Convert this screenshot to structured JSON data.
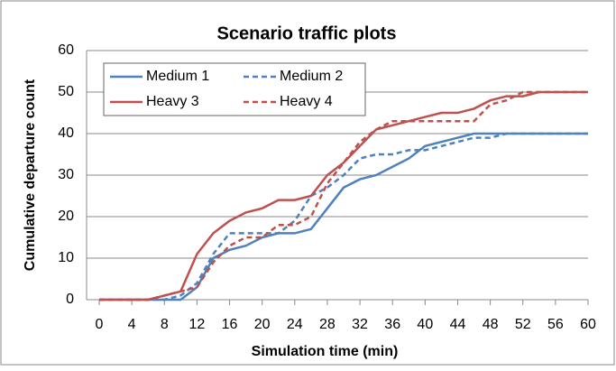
{
  "chart_data": {
    "type": "line",
    "title": "Scenario traffic plots",
    "x_label": "Simulation time (min)",
    "y_label": "Cumulative departure count",
    "x": [
      0,
      2,
      4,
      6,
      8,
      10,
      12,
      14,
      16,
      18,
      20,
      22,
      24,
      26,
      28,
      30,
      32,
      34,
      36,
      38,
      40,
      42,
      44,
      46,
      48,
      50,
      52,
      54,
      56,
      58,
      60
    ],
    "series": [
      {
        "name": "Medium 1",
        "color": "#4f81bd",
        "dashed": false,
        "values": [
          0,
          0,
          0,
          0,
          0,
          0,
          3,
          10,
          12,
          13,
          15,
          16,
          16,
          17,
          22,
          27,
          29,
          30,
          32,
          34,
          37,
          38,
          39,
          40,
          40,
          40,
          40,
          40,
          40,
          40,
          40
        ]
      },
      {
        "name": "Medium 2",
        "color": "#4f81bd",
        "dashed": true,
        "values": [
          0,
          0,
          0,
          0,
          0,
          1,
          4,
          11,
          16,
          16,
          16,
          16,
          19,
          25,
          27,
          30,
          34,
          35,
          35,
          36,
          36,
          37,
          38,
          39,
          39,
          40,
          40,
          40,
          40,
          40,
          40
        ]
      },
      {
        "name": "Heavy 3",
        "color": "#c0504d",
        "dashed": false,
        "values": [
          0,
          0,
          0,
          0,
          1,
          2,
          11,
          16,
          19,
          21,
          22,
          24,
          24,
          25,
          30,
          33,
          37,
          41,
          42,
          43,
          44,
          45,
          45,
          46,
          48,
          49,
          49,
          50,
          50,
          50,
          50
        ]
      },
      {
        "name": "Heavy 4",
        "color": "#c0504d",
        "dashed": true,
        "values": [
          0,
          0,
          0,
          0,
          1,
          2,
          3,
          9,
          13,
          15,
          15,
          18,
          18,
          20,
          28,
          33,
          38,
          41,
          43,
          43,
          43,
          43,
          43,
          43,
          47,
          48,
          50,
          50,
          50,
          50,
          50
        ]
      }
    ],
    "xlim": [
      0,
      60
    ],
    "xticks": [
      0,
      4,
      8,
      12,
      16,
      20,
      24,
      28,
      32,
      36,
      40,
      44,
      48,
      52,
      56,
      60
    ],
    "ylim": [
      0,
      60
    ],
    "yticks": [
      0,
      10,
      20,
      30,
      40,
      50,
      60
    ],
    "grid": true
  }
}
